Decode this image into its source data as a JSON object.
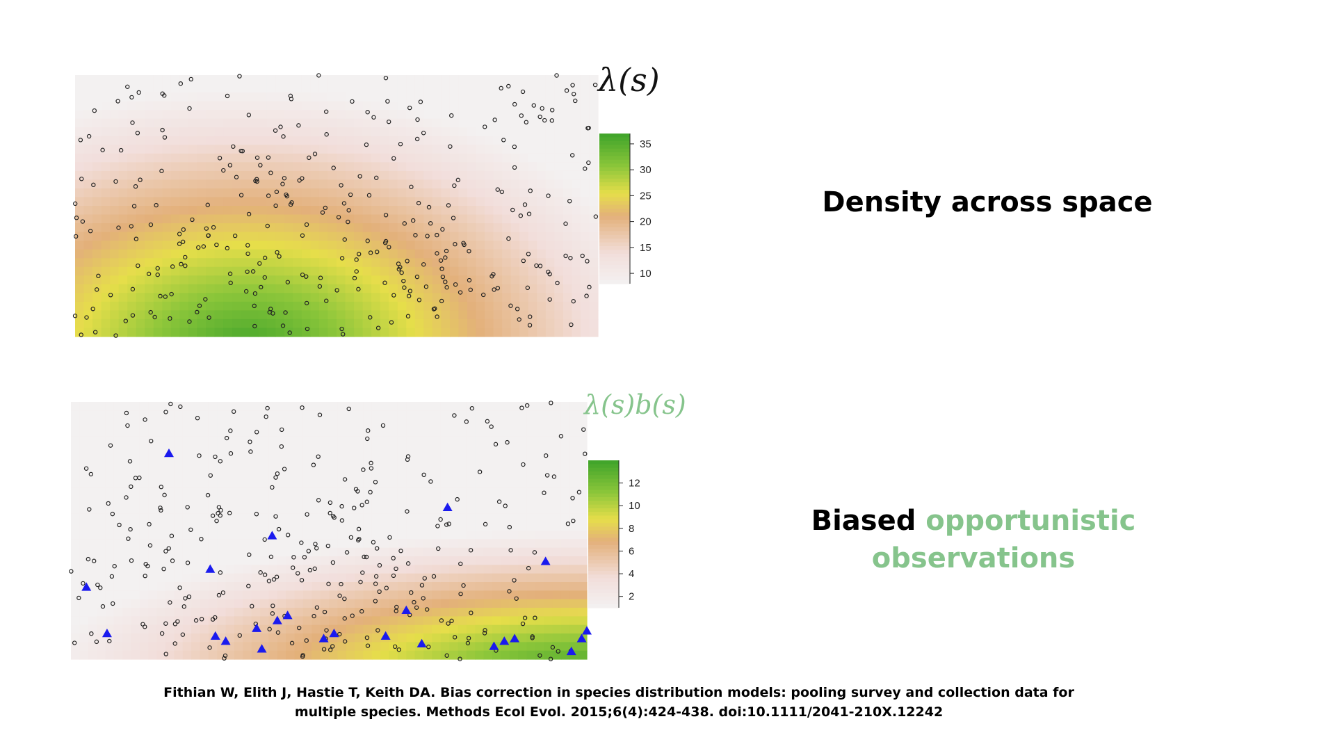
{
  "labels": {
    "top_formula": "λ(s)",
    "bottom_formula": "λ(s)b(s)"
  },
  "headlines": {
    "top": "Density across space",
    "bottom_part1": "Biased",
    "bottom_part2": "opportunistic",
    "bottom_part3": "observations"
  },
  "citation": {
    "line1": "Fithian W, Elith J, Hastie T, Keith DA. Bias correction in species distribution models: pooling survey and collection data for",
    "line2": "multiple species. Methods Ecol Evol. 2015;6(4):424-438. doi:10.1111/2041-210X.12242"
  },
  "colors": {
    "high": "#3ea32a",
    "mid_high": "#8cc63a",
    "mid": "#e6de4a",
    "mid_low": "#e3b07a",
    "low": "#f2dedb",
    "lowest": "#f3f1f1",
    "point_stroke": "#222222",
    "observation_marker": "#1a1aee",
    "accent": "#86c48c"
  },
  "chart_data": [
    {
      "type": "heatmap",
      "name": "top",
      "legend_ticks": [
        10,
        15,
        20,
        25,
        30,
        35
      ],
      "legend_range": [
        8,
        37
      ],
      "legend_placement": "right",
      "field_peak": [
        0.33,
        1.0
      ],
      "field_range": [
        0,
        37
      ],
      "n_points": 320,
      "point_style": "open circle"
    },
    {
      "type": "heatmap",
      "name": "bottom",
      "legend_ticks": [
        2,
        4,
        6,
        8,
        10,
        12
      ],
      "legend_range": [
        1,
        14
      ],
      "legend_placement": "right",
      "field_peak": [
        0.98,
        1.0
      ],
      "field_range": [
        0,
        14
      ],
      "n_points": 300,
      "point_style": "open circle",
      "observations": [
        [
          0.19,
          0.2
        ],
        [
          0.03,
          0.72
        ],
        [
          0.07,
          0.9
        ],
        [
          0.27,
          0.65
        ],
        [
          0.39,
          0.52
        ],
        [
          0.28,
          0.91
        ],
        [
          0.3,
          0.93
        ],
        [
          0.36,
          0.88
        ],
        [
          0.4,
          0.85
        ],
        [
          0.42,
          0.83
        ],
        [
          0.37,
          0.96
        ],
        [
          0.49,
          0.92
        ],
        [
          0.51,
          0.9
        ],
        [
          0.61,
          0.91
        ],
        [
          0.65,
          0.81
        ],
        [
          0.68,
          0.94
        ],
        [
          0.73,
          0.41
        ],
        [
          0.82,
          0.95
        ],
        [
          0.84,
          0.93
        ],
        [
          0.86,
          0.92
        ],
        [
          0.92,
          0.62
        ],
        [
          0.97,
          0.97
        ],
        [
          0.99,
          0.92
        ],
        [
          1.0,
          0.89
        ]
      ]
    }
  ]
}
